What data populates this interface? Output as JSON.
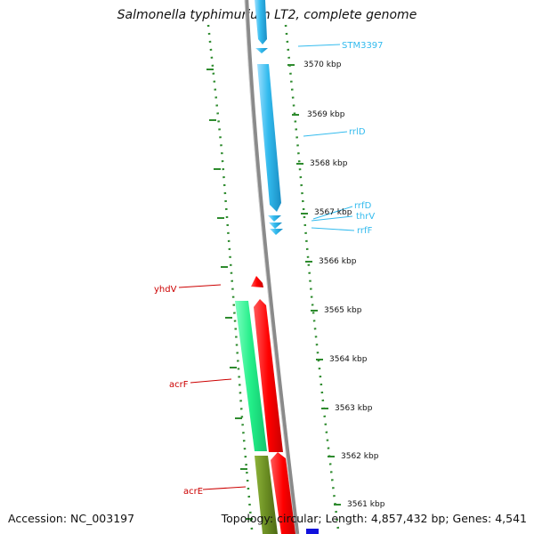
{
  "title": "Salmonella typhimurium LT2, complete genome",
  "accession": "Accession: NC_003197",
  "summary": "Topology: circular; Length: 4,857,432 bp; Genes: 4,541",
  "colors": {
    "backbone": "#8a8a8a",
    "tick": "#2e8b2e",
    "rna_feature": "#33bbee",
    "reverse_feature": "#ff0000",
    "forward_green": "#22ee88",
    "forward_olive": "#6b8e23",
    "blue_feature": "#0000dd",
    "rna_label": "#33bbee",
    "gene_label": "#cc0000"
  },
  "scale_labels": [
    "3570 kbp",
    "3569 kbp",
    "3568 kbp",
    "3567 kbp",
    "3566 kbp",
    "3565 kbp",
    "3564 kbp",
    "3563 kbp",
    "3562 kbp",
    "3561 kbp"
  ],
  "features": {
    "stm3397": "STM3397",
    "rrld": "rrlD",
    "rrfd": "rrfD",
    "thrv": "thrV",
    "rrff": "rrfF",
    "yhdv": "yhdV",
    "acrf": "acrF",
    "acre": "acrE"
  }
}
